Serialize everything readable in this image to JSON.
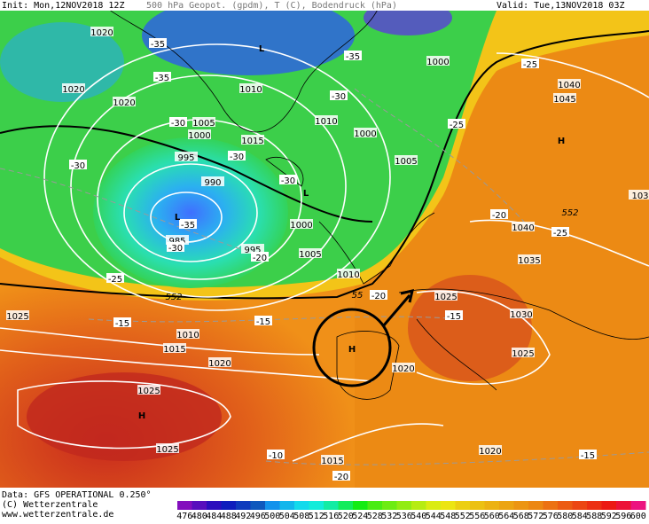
{
  "header": {
    "init": "Init: Mon,12NOV2018 12Z",
    "title": "500 hPa Geopot. (gpdm), T (C), Bodendruck (hPa)",
    "valid": "Valid: Tue,13NOV2018 03Z"
  },
  "footer": {
    "data": "Data: GFS OPERATIONAL 0.250°",
    "copyright": "(C) Wetterzentrale",
    "url": "www.wetterzentrale.de"
  },
  "colorbar": {
    "labels": [
      "476",
      "480",
      "484",
      "488",
      "492",
      "496",
      "500",
      "504",
      "508",
      "512",
      "516",
      "520",
      "524",
      "528",
      "532",
      "536",
      "540",
      "544",
      "548",
      "552",
      "556",
      "560",
      "564",
      "568",
      "572",
      "576",
      "580",
      "584",
      "588",
      "592",
      "596",
      "600"
    ]
  },
  "map": {
    "isobar_labels": [
      "1020",
      "1020",
      "1020",
      "1010",
      "1005",
      "1000",
      "1015",
      "995",
      "990",
      "985",
      "995",
      "1000",
      "1005",
      "1010",
      "1010",
      "1000",
      "1005",
      "1000",
      "1040",
      "1045",
      "1040",
      "1035",
      "1030",
      "1025",
      "1025",
      "1020",
      "1020",
      "1015",
      "1025",
      "1010",
      "1015",
      "1020",
      "1025",
      "1025",
      "103"
    ],
    "temperature_labels": [
      "-35",
      "-35",
      "-30",
      "-30",
      "-30",
      "-30",
      "-35",
      "-25",
      "-25",
      "-20",
      "-25",
      "-30",
      "-35",
      "-30",
      "-20",
      "-25",
      "-20",
      "-15",
      "-15",
      "-15",
      "-10",
      "-20",
      "-15"
    ],
    "pressure_centers": [
      "L",
      "L",
      "L",
      "H",
      "H",
      "H"
    ],
    "contour_labels": [
      "552",
      "552",
      "55"
    ]
  }
}
